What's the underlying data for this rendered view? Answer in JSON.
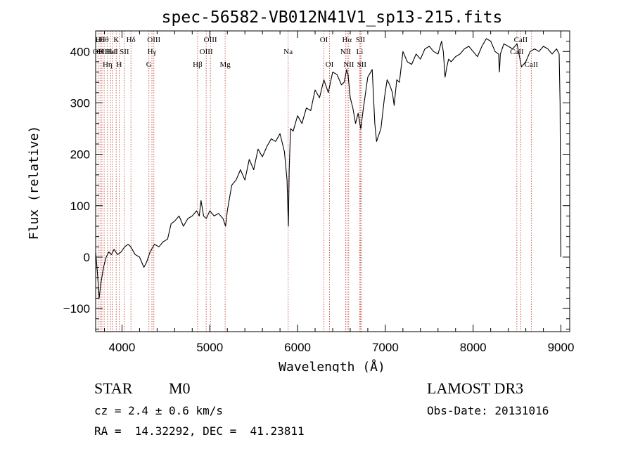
{
  "chart_data": {
    "type": "line",
    "title": "spec-56582-VB012N41V1_sp13-215.fits",
    "xlabel": "Wavelength (Å)",
    "ylabel": "Flux (relative)",
    "xlim": [
      3700,
      9100
    ],
    "ylim": [
      -145,
      440
    ],
    "x_ticks": [
      4000,
      5000,
      6000,
      7000,
      8000,
      9000
    ],
    "x_tick_labels": [
      "4000",
      "5000",
      "6000",
      "7000",
      "8000",
      "9000"
    ],
    "y_ticks": [
      -100,
      0,
      100,
      200,
      300,
      400
    ],
    "y_tick_labels": [
      "−100",
      "0",
      "100",
      "200",
      "300",
      "400"
    ],
    "series": [
      {
        "name": "flux",
        "x": [
          3700,
          3720,
          3740,
          3760,
          3790,
          3820,
          3850,
          3880,
          3910,
          3950,
          3990,
          4030,
          4070,
          4100,
          4150,
          4200,
          4250,
          4280,
          4320,
          4370,
          4420,
          4470,
          4520,
          4560,
          4600,
          4650,
          4700,
          4750,
          4800,
          4850,
          4880,
          4900,
          4930,
          4960,
          5000,
          5050,
          5100,
          5150,
          5180,
          5200,
          5250,
          5300,
          5350,
          5400,
          5450,
          5500,
          5550,
          5600,
          5650,
          5700,
          5750,
          5800,
          5850,
          5880,
          5895,
          5905,
          5920,
          5950,
          6000,
          6050,
          6100,
          6150,
          6200,
          6250,
          6300,
          6350,
          6400,
          6450,
          6500,
          6530,
          6560,
          6575,
          6600,
          6630,
          6660,
          6690,
          6720,
          6750,
          6800,
          6850,
          6880,
          6900,
          6950,
          6990,
          7020,
          7050,
          7080,
          7100,
          7130,
          7160,
          7200,
          7250,
          7300,
          7350,
          7400,
          7450,
          7500,
          7550,
          7600,
          7640,
          7660,
          7680,
          7700,
          7720,
          7750,
          7800,
          7850,
          7900,
          7950,
          8000,
          8050,
          8100,
          8150,
          8200,
          8250,
          8290,
          8300,
          8310,
          8350,
          8400,
          8450,
          8500,
          8550,
          8600,
          8650,
          8700,
          8750,
          8800,
          8850,
          8900,
          8950,
          8980,
          8990,
          8995,
          9000
        ],
        "y": [
          10,
          -30,
          -80,
          -50,
          -20,
          0,
          10,
          5,
          15,
          5,
          10,
          20,
          25,
          20,
          5,
          0,
          -20,
          -10,
          10,
          25,
          20,
          30,
          35,
          65,
          70,
          80,
          60,
          75,
          80,
          90,
          80,
          110,
          80,
          75,
          90,
          80,
          85,
          75,
          60,
          90,
          140,
          150,
          170,
          150,
          190,
          170,
          210,
          195,
          215,
          230,
          225,
          240,
          205,
          150,
          60,
          170,
          250,
          245,
          275,
          260,
          290,
          285,
          325,
          310,
          345,
          320,
          360,
          355,
          335,
          340,
          365,
          355,
          310,
          290,
          260,
          280,
          250,
          290,
          350,
          365,
          260,
          225,
          250,
          310,
          345,
          335,
          320,
          295,
          345,
          340,
          400,
          380,
          375,
          395,
          385,
          405,
          410,
          400,
          395,
          420,
          400,
          350,
          370,
          385,
          380,
          390,
          395,
          405,
          410,
          400,
          390,
          410,
          425,
          420,
          400,
          395,
          360,
          395,
          415,
          410,
          405,
          415,
          370,
          380,
          400,
          405,
          400,
          410,
          405,
          395,
          405,
          395,
          300,
          130,
          0
        ]
      }
    ],
    "line_markers": [
      {
        "wavelength": 3727,
        "label": "OII",
        "row": 2
      },
      {
        "wavelength": 3750,
        "label": "Hθ",
        "row": 1
      },
      {
        "wavelength": 3771,
        "label": "OII",
        "row": 2
      },
      {
        "wavelength": 3797,
        "label": "Hθ",
        "row": 1
      },
      {
        "wavelength": 3835,
        "label": "Hη",
        "row": 3
      },
      {
        "wavelength": 3869,
        "label": "HeI",
        "row": 2
      },
      {
        "wavelength": 3889,
        "label": "HeI",
        "row": 2
      },
      {
        "wavelength": 3934,
        "label": "K",
        "row": 1
      },
      {
        "wavelength": 3968,
        "label": "H",
        "row": 3
      },
      {
        "wavelength": 4027,
        "label": "SII",
        "row": 2
      },
      {
        "wavelength": 4102,
        "label": "Hδ",
        "row": 1
      },
      {
        "wavelength": 4307,
        "label": "G",
        "row": 3
      },
      {
        "wavelength": 4341,
        "label": "Hγ",
        "row": 2
      },
      {
        "wavelength": 4363,
        "label": "OIII",
        "row": 1
      },
      {
        "wavelength": 4861,
        "label": "Hβ",
        "row": 3
      },
      {
        "wavelength": 4959,
        "label": "OIII",
        "row": 2
      },
      {
        "wavelength": 5007,
        "label": "OIII",
        "row": 1
      },
      {
        "wavelength": 5175,
        "label": "Mg",
        "row": 3
      },
      {
        "wavelength": 5893,
        "label": "Na",
        "row": 2
      },
      {
        "wavelength": 6300,
        "label": "OI",
        "row": 1
      },
      {
        "wavelength": 6364,
        "label": "OI",
        "row": 3
      },
      {
        "wavelength": 6548,
        "label": "NII",
        "row": 2
      },
      {
        "wavelength": 6563,
        "label": "Hα",
        "row": 1
      },
      {
        "wavelength": 6583,
        "label": "NII",
        "row": 3
      },
      {
        "wavelength": 6708,
        "label": "Li",
        "row": 2
      },
      {
        "wavelength": 6716,
        "label": "SII",
        "row": 1
      },
      {
        "wavelength": 6731,
        "label": "SII",
        "row": 3
      },
      {
        "wavelength": 8498,
        "label": "CaII",
        "row": 2
      },
      {
        "wavelength": 8542,
        "label": "CaII",
        "row": 1
      },
      {
        "wavelength": 8662,
        "label": "CaII",
        "row": 3
      }
    ]
  },
  "info": {
    "object_class": "STAR",
    "subclass": "M0",
    "survey": "LAMOST DR3",
    "redshift": "cz = 2.4 ± 0.6 km/s",
    "obs_date": "Obs-Date: 20131016",
    "coords": "RA =  14.32292, DEC =  41.23811"
  },
  "colors": {
    "axis": "#000000",
    "line": "#000000",
    "marker": "#c0392b"
  }
}
